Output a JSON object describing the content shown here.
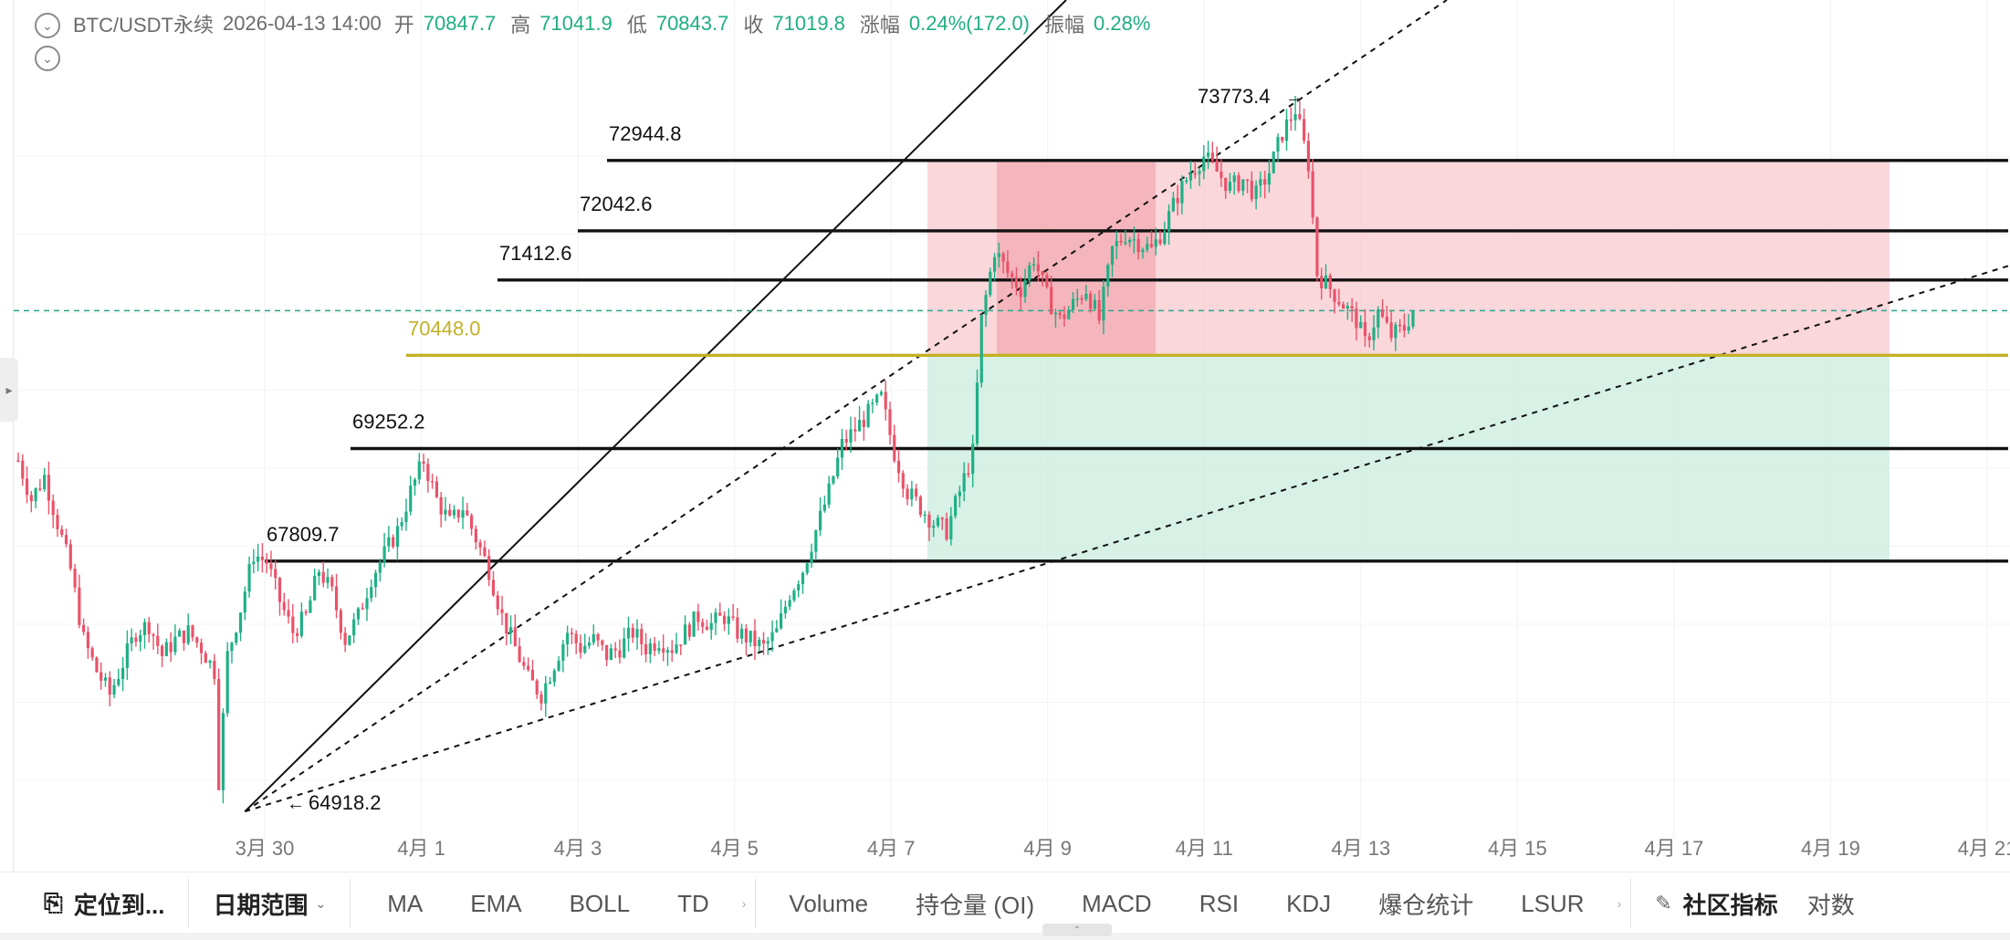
{
  "header": {
    "symbol": "BTC/USDT永续",
    "datetime": "2026-04-13 14:00",
    "open_label": "开",
    "open": "70847.7",
    "high_label": "高",
    "high": "71041.9",
    "low_label": "低",
    "low": "70843.7",
    "close_label": "收",
    "close": "71019.8",
    "change_label": "涨幅",
    "change": "0.24%(172.0)",
    "amplitude_label": "振幅",
    "amplitude": "0.28%"
  },
  "chart_data": {
    "type": "candlestick",
    "title": "BTC/USDT永续",
    "y_range": [
      64100,
      74800
    ],
    "x_tick_labels": [
      "3月 30",
      "4月 1",
      "4月 3",
      "4月 5",
      "4月 7",
      "4月 9",
      "4月 11",
      "4月 13",
      "4月 15",
      "4月 17",
      "4月 19",
      "4月 21"
    ],
    "x_tick_dates": [
      "2026-03-30",
      "2026-04-01",
      "2026-04-03",
      "2026-04-05",
      "2026-04-07",
      "2026-04-09",
      "2026-04-11",
      "2026-04-13",
      "2026-04-15",
      "2026-04-17",
      "2026-04-19",
      "2026-04-21"
    ],
    "price_path": [
      [
        0,
        69100
      ],
      [
        3,
        68600
      ],
      [
        6,
        68900
      ],
      [
        9,
        68300
      ],
      [
        12,
        67700
      ],
      [
        15,
        66800
      ],
      [
        18,
        66400
      ],
      [
        21,
        66100
      ],
      [
        24,
        66500
      ],
      [
        27,
        66900
      ],
      [
        30,
        67000
      ],
      [
        33,
        66600
      ],
      [
        36,
        66800
      ],
      [
        39,
        66900
      ],
      [
        42,
        66700
      ],
      [
        45,
        66400
      ],
      [
        46,
        65000
      ],
      [
        48,
        66600
      ],
      [
        51,
        67200
      ],
      [
        54,
        67900
      ],
      [
        57,
        67800
      ],
      [
        60,
        67300
      ],
      [
        63,
        66900
      ],
      [
        66,
        67100
      ],
      [
        69,
        67700
      ],
      [
        72,
        67400
      ],
      [
        75,
        66800
      ],
      [
        78,
        67100
      ],
      [
        81,
        67600
      ],
      [
        84,
        67900
      ],
      [
        87,
        68200
      ],
      [
        90,
        68700
      ],
      [
        93,
        69100
      ],
      [
        96,
        68600
      ],
      [
        99,
        68300
      ],
      [
        102,
        68500
      ],
      [
        105,
        68100
      ],
      [
        108,
        67700
      ],
      [
        111,
        67100
      ],
      [
        114,
        66700
      ],
      [
        117,
        66300
      ],
      [
        120,
        66100
      ],
      [
        123,
        66500
      ],
      [
        126,
        66900
      ],
      [
        129,
        66700
      ],
      [
        132,
        66800
      ],
      [
        135,
        66600
      ],
      [
        138,
        66700
      ],
      [
        141,
        66900
      ],
      [
        144,
        66700
      ],
      [
        147,
        66800
      ],
      [
        150,
        66700
      ],
      [
        153,
        66900
      ],
      [
        156,
        67100
      ],
      [
        159,
        67000
      ],
      [
        162,
        67100
      ],
      [
        165,
        66900
      ],
      [
        168,
        66800
      ],
      [
        171,
        66700
      ],
      [
        174,
        66900
      ],
      [
        177,
        67400
      ],
      [
        180,
        67700
      ],
      [
        183,
        68200
      ],
      [
        186,
        68700
      ],
      [
        189,
        69300
      ],
      [
        192,
        69500
      ],
      [
        195,
        69700
      ],
      [
        198,
        69900
      ],
      [
        201,
        69200
      ],
      [
        204,
        68700
      ],
      [
        207,
        68500
      ],
      [
        210,
        68300
      ],
      [
        213,
        68200
      ],
      [
        216,
        68700
      ],
      [
        219,
        69200
      ],
      [
        221,
        70900
      ],
      [
        224,
        71800
      ],
      [
        227,
        71500
      ],
      [
        230,
        71300
      ],
      [
        233,
        71700
      ],
      [
        236,
        71200
      ],
      [
        239,
        70900
      ],
      [
        242,
        71100
      ],
      [
        245,
        71300
      ],
      [
        248,
        70900
      ],
      [
        251,
        71800
      ],
      [
        254,
        72000
      ],
      [
        257,
        71900
      ],
      [
        260,
        71800
      ],
      [
        263,
        72100
      ],
      [
        266,
        72500
      ],
      [
        269,
        72800
      ],
      [
        272,
        73000
      ],
      [
        275,
        72800
      ],
      [
        278,
        72600
      ],
      [
        281,
        72700
      ],
      [
        284,
        72500
      ],
      [
        287,
        72800
      ],
      [
        290,
        73300
      ],
      [
        293,
        73600
      ],
      [
        296,
        72900
      ],
      [
        298,
        71500
      ],
      [
        301,
        71300
      ],
      [
        304,
        71100
      ],
      [
        307,
        70900
      ],
      [
        309,
        70600
      ],
      [
        312,
        71000
      ],
      [
        315,
        70700
      ],
      [
        318,
        70800
      ],
      [
        320,
        71020
      ]
    ],
    "horizontal_levels": [
      {
        "label": "72944.8",
        "value": 72944.8,
        "color": "#111111"
      },
      {
        "label": "72042.6",
        "value": 72042.6,
        "color": "#111111"
      },
      {
        "label": "71412.6",
        "value": 71412.6,
        "color": "#111111"
      },
      {
        "label": "70448.0",
        "value": 70448.0,
        "color": "#c3b128"
      },
      {
        "label": "69252.2",
        "value": 69252.2,
        "color": "#111111"
      },
      {
        "label": "67809.7",
        "value": 67809.7,
        "color": "#111111"
      }
    ],
    "current_price_line": 71019.8,
    "annotations": [
      {
        "text": "73773.4",
        "value": 73773.4,
        "date": "2026-04-12"
      },
      {
        "text": "64918.2",
        "value": 64918.2,
        "date": "2026-03-30"
      }
    ],
    "zones": {
      "short_position": {
        "from_value": 70448.0,
        "to_value": 72944.8,
        "color": "#f8c8cd"
      },
      "long_position": {
        "from_value": 67809.7,
        "to_value": 70448.0,
        "color": "#c9ecdf"
      },
      "highlight": {
        "from_value": 70448.0,
        "to_value": 72944.8,
        "color": "#f0a0a6"
      }
    }
  },
  "toolbar": {
    "locate_label": "定位到...",
    "date_range_label": "日期范围",
    "indicators": [
      "MA",
      "EMA",
      "BOLL",
      "TD"
    ],
    "sub_indicators": [
      "Volume",
      "持仓量 (OI)",
      "MACD",
      "RSI",
      "KDJ",
      "爆仓统计",
      "LSUR"
    ],
    "community_label": "社区指标",
    "compare_label": "对数"
  },
  "colors": {
    "up": "#20b086",
    "down": "#e9536a",
    "level": "#111111",
    "yellow_level": "#c3b128",
    "current": "#2aa78a"
  }
}
